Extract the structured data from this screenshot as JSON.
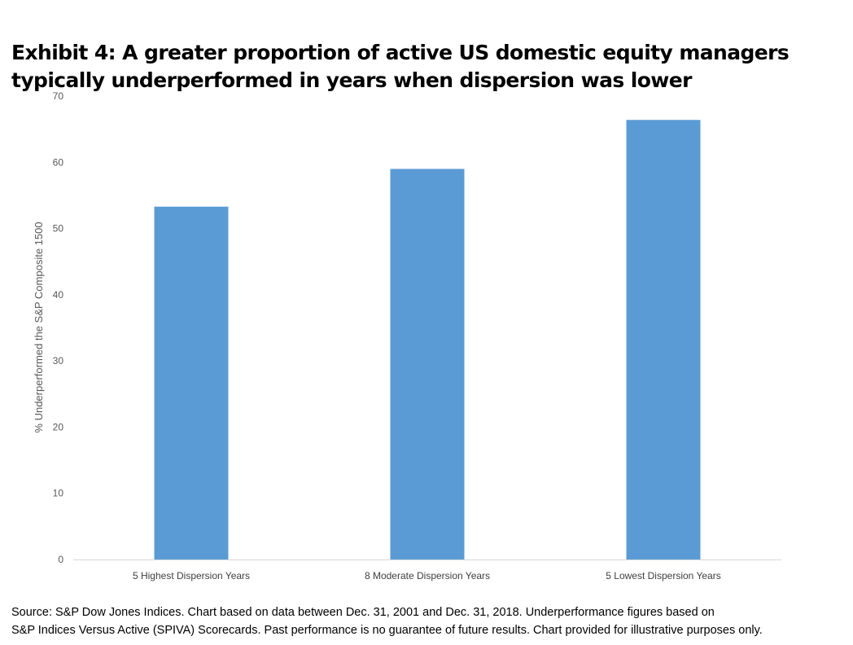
{
  "chart_data": {
    "type": "bar",
    "title": "Exhibit 4:  A greater proportion of active US domestic equity managers typically underperformed in years when dispersion was lower",
    "categories": [
      "5 Highest Dispersion Years",
      "8 Moderate Dispersion Years",
      "5 Lowest Dispersion Years"
    ],
    "values": [
      53.3,
      59.0,
      66.4
    ],
    "xlabel": "",
    "ylabel": "% Underperformed the S&P Composite 1500",
    "ylim": [
      0,
      70
    ],
    "yticks": [
      0,
      10,
      20,
      30,
      40,
      50,
      60,
      70
    ],
    "grid": false,
    "bar_color": "#5b9bd5"
  },
  "source": {
    "line1": "Source:  S&P Dow Jones Indices.  Chart based on data between Dec. 31, 2001 and Dec. 31, 2018.  Underperformance figures based on",
    "line2": "S&P Indices Versus Active (SPIVA) Scorecards.  Past performance is no guarantee of future results.  Chart provided for illustrative purposes only."
  }
}
